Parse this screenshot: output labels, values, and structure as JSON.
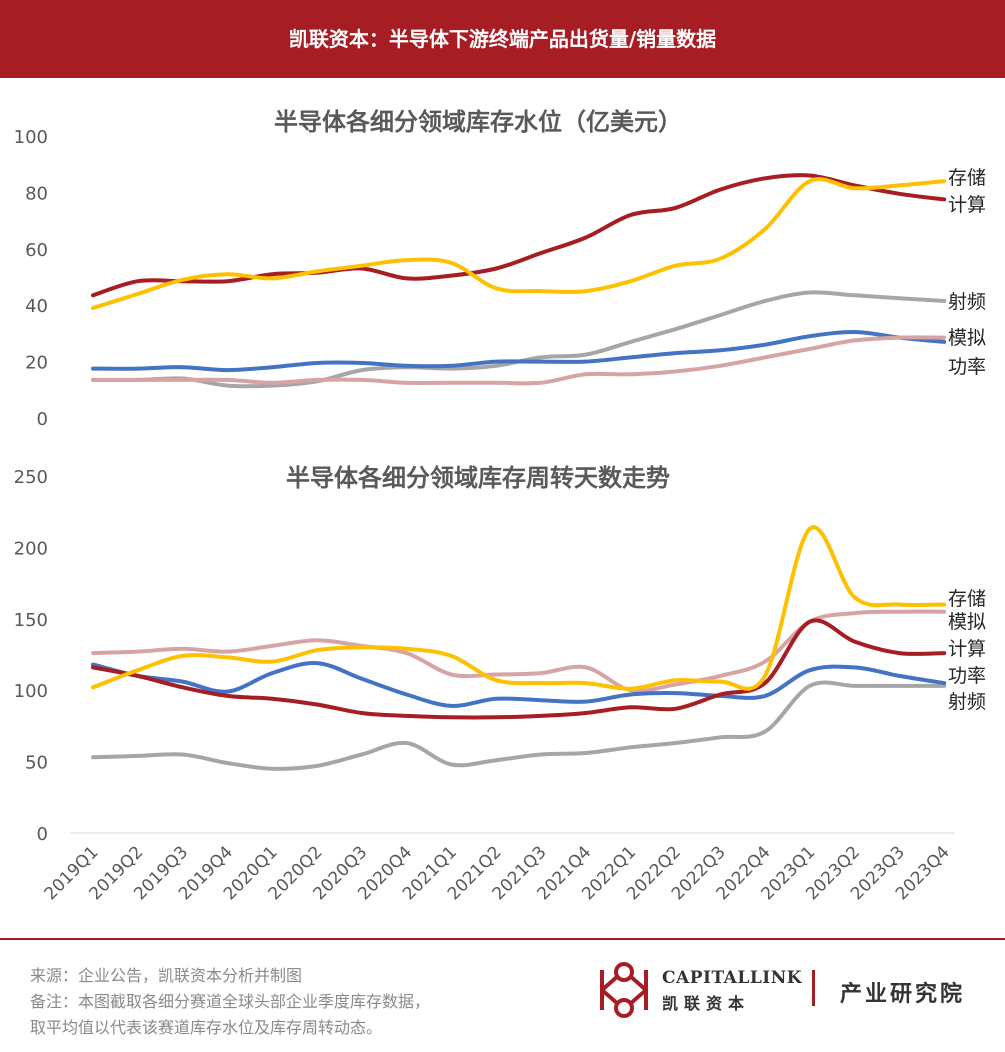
{
  "header": {
    "title": "凯联资本：半导体下游终端产品出货量/销量数据"
  },
  "colors": {
    "header_bg": "#a61d24",
    "计算": "#a61d24",
    "存储": "#ffc000",
    "射频": "#a6a6a6",
    "模拟": "#4472c4",
    "功率": "#d6a4a4"
  },
  "chart_data": [
    {
      "type": "line",
      "title": "半导体各细分领域库存水位（亿美元）",
      "categories": [
        "2019Q1",
        "2019Q2",
        "2019Q3",
        "2019Q4",
        "2020Q1",
        "2020Q2",
        "2020Q3",
        "2020Q4",
        "2021Q1",
        "2021Q2",
        "2021Q3",
        "2021Q4",
        "2022Q1",
        "2022Q2",
        "2022Q3",
        "2022Q4",
        "2023Q1",
        "2023Q2",
        "2023Q3",
        "2023Q4"
      ],
      "ylim": [
        0,
        100
      ],
      "yticks": [
        0,
        20,
        40,
        60,
        80,
        100
      ],
      "grid": false,
      "legend": "right-end labels",
      "series": [
        {
          "name": "计算",
          "color": "#a61d24",
          "values": [
            43.5,
            48.5,
            48.5,
            48.5,
            51,
            51.5,
            53,
            49.5,
            50.5,
            53,
            58.5,
            64,
            72,
            74.5,
            81,
            85,
            86,
            82.5,
            79.5,
            77.5
          ]
        },
        {
          "name": "存储",
          "color": "#ffc000",
          "values": [
            39,
            44,
            49,
            51,
            49.5,
            52,
            54,
            56,
            55,
            46,
            45,
            45,
            48.5,
            54,
            56.5,
            67,
            84,
            81.5,
            82.5,
            84
          ]
        },
        {
          "name": "射频",
          "color": "#a6a6a6",
          "values": [
            13.5,
            13.5,
            14,
            11.5,
            11.5,
            13,
            17,
            18,
            17.5,
            18.5,
            21.5,
            22.5,
            27,
            31.5,
            36.5,
            41.5,
            44.5,
            43.5,
            42.5,
            41.5
          ]
        },
        {
          "name": "模拟",
          "color": "#4472c4",
          "values": [
            17.5,
            17.5,
            18,
            17,
            18,
            19.5,
            19.5,
            18.5,
            18.5,
            20,
            20,
            20,
            21.5,
            23,
            24,
            26,
            29,
            30.5,
            28.5,
            27
          ]
        },
        {
          "name": "功率",
          "color": "#d6a4a4",
          "values": [
            13.5,
            13.5,
            13.5,
            13.5,
            12.5,
            13.5,
            13.5,
            12.5,
            12.5,
            12.5,
            12.5,
            15.5,
            15.5,
            16.5,
            18.5,
            21.5,
            24.5,
            27.5,
            28.5,
            28.5
          ]
        }
      ],
      "end_labels": [
        "存储",
        "计算",
        "射频",
        "模拟",
        "功率"
      ]
    },
    {
      "type": "line",
      "title": "半导体各细分领域库存周转天数走势",
      "categories": [
        "2019Q1",
        "2019Q2",
        "2019Q3",
        "2019Q4",
        "2020Q1",
        "2020Q2",
        "2020Q3",
        "2020Q4",
        "2021Q1",
        "2021Q2",
        "2021Q3",
        "2021Q4",
        "2022Q1",
        "2022Q2",
        "2022Q3",
        "2022Q4",
        "2023Q1",
        "2023Q2",
        "2023Q3",
        "2023Q4"
      ],
      "ylim": [
        0,
        250
      ],
      "yticks": [
        0,
        50,
        100,
        150,
        200,
        250
      ],
      "grid": false,
      "legend": "right-end labels",
      "series": [
        {
          "name": "功率",
          "color": "#d6a4a4",
          "values": [
            126,
            127,
            129,
            127,
            131,
            135,
            131,
            126,
            111,
            111,
            112,
            116,
            100,
            104,
            110,
            120,
            148,
            154,
            155,
            155
          ]
        },
        {
          "name": "射频",
          "color": "#a6a6a6",
          "values": [
            53,
            54,
            55,
            49,
            45,
            47,
            55,
            63,
            48,
            51,
            55,
            56,
            60,
            63,
            67,
            71,
            103,
            103,
            103,
            103
          ]
        },
        {
          "name": "模拟",
          "color": "#4472c4",
          "values": [
            118,
            110,
            106,
            99,
            112,
            119,
            108,
            97,
            89,
            94,
            93,
            92,
            97,
            98,
            96,
            96,
            114,
            116,
            110,
            105
          ]
        },
        {
          "name": "计算",
          "color": "#a61d24",
          "values": [
            116,
            110,
            102,
            96,
            94,
            90,
            84,
            82,
            81,
            81,
            82,
            84,
            88,
            87,
            97,
            105,
            148,
            134,
            126,
            126
          ]
        },
        {
          "name": "存储",
          "color": "#ffc000",
          "values": [
            102,
            114,
            124,
            123,
            120,
            128,
            130,
            129,
            124,
            107,
            105,
            105,
            101,
            107,
            106,
            110,
            213,
            165,
            160,
            160
          ]
        }
      ],
      "end_labels": [
        "存储",
        "模拟",
        "计算",
        "功率",
        "射频"
      ]
    }
  ],
  "footer": {
    "source": "来源：企业公告，凯联资本分析并制图",
    "note1": "备注：本图截取各细分赛道全球头部企业季度库存数据，",
    "note2": "取平均值以代表该赛道库存水位及库存周转动态。"
  },
  "brand": {
    "logo_icon": "capitallink-logo-icon",
    "name_en": "CAPITALLINK",
    "name_cn": "凯联资本",
    "institute": "产业研究院"
  }
}
